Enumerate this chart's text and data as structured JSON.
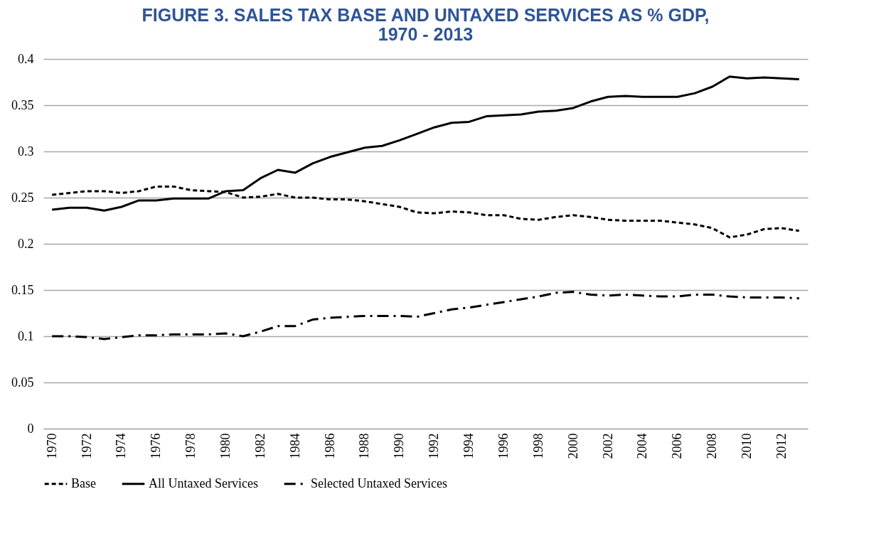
{
  "chart_data": {
    "type": "line",
    "title": "FIGURE 3.  SALES TAX BASE AND UNTAXED SERVICES AS % GDP, 1970 - 2013",
    "categories": [
      "1970",
      null,
      "1972",
      null,
      "1974",
      null,
      "1976",
      null,
      "1978",
      null,
      "1980",
      null,
      "1982",
      null,
      "1984",
      null,
      "1986",
      null,
      "1988",
      null,
      "1990",
      null,
      "1992",
      null,
      "1994",
      null,
      "1996",
      null,
      "1998",
      null,
      "2000",
      null,
      "2002",
      null,
      "2004",
      null,
      "2006",
      null,
      "2008",
      null,
      "2010",
      null,
      "2012",
      null
    ],
    "series": [
      {
        "name": "Base",
        "color": "#000000",
        "line_style": "dashed",
        "values": [
          0.253,
          0.255,
          0.257,
          0.257,
          0.255,
          0.257,
          0.262,
          0.262,
          0.258,
          0.257,
          0.256,
          0.25,
          0.251,
          0.254,
          0.25,
          0.25,
          0.248,
          0.248,
          0.246,
          0.243,
          0.24,
          0.234,
          0.233,
          0.235,
          0.234,
          0.231,
          0.231,
          0.227,
          0.226,
          0.229,
          0.231,
          0.229,
          0.226,
          0.225,
          0.225,
          0.225,
          0.223,
          0.221,
          0.217,
          0.207,
          0.21,
          0.216,
          0.217,
          0.214
        ]
      },
      {
        "name": "All Untaxed Services",
        "color": "#000000",
        "line_style": "solid",
        "values": [
          0.237,
          0.239,
          0.239,
          0.236,
          0.24,
          0.247,
          0.247,
          0.249,
          0.249,
          0.249,
          0.257,
          0.258,
          0.271,
          0.28,
          0.277,
          0.287,
          0.294,
          0.299,
          0.304,
          0.306,
          0.312,
          0.319,
          0.326,
          0.331,
          0.332,
          0.338,
          0.339,
          0.34,
          0.343,
          0.344,
          0.347,
          0.354,
          0.359,
          0.36,
          0.359,
          0.359,
          0.359,
          0.363,
          0.37,
          0.381,
          0.379,
          0.38,
          0.379,
          0.378
        ]
      },
      {
        "name": "Selected Untaxed Services",
        "color": "#000000",
        "line_style": "dashdot",
        "values": [
          0.1,
          0.1,
          0.099,
          0.097,
          0.099,
          0.101,
          0.101,
          0.102,
          0.102,
          0.102,
          0.103,
          0.1,
          0.105,
          0.111,
          0.111,
          0.118,
          0.12,
          0.121,
          0.122,
          0.122,
          0.122,
          0.121,
          0.125,
          0.129,
          0.131,
          0.134,
          0.137,
          0.14,
          0.143,
          0.147,
          0.148,
          0.145,
          0.144,
          0.145,
          0.144,
          0.143,
          0.143,
          0.145,
          0.145,
          0.143,
          0.142,
          0.142,
          0.142,
          0.141
        ]
      }
    ],
    "ylim": [
      0,
      0.4
    ],
    "yticks": [
      0,
      0.05,
      0.1,
      0.15,
      0.2,
      0.25,
      0.3,
      0.35,
      0.4
    ],
    "grid": "y",
    "legend": "bottom",
    "marker": "none"
  }
}
